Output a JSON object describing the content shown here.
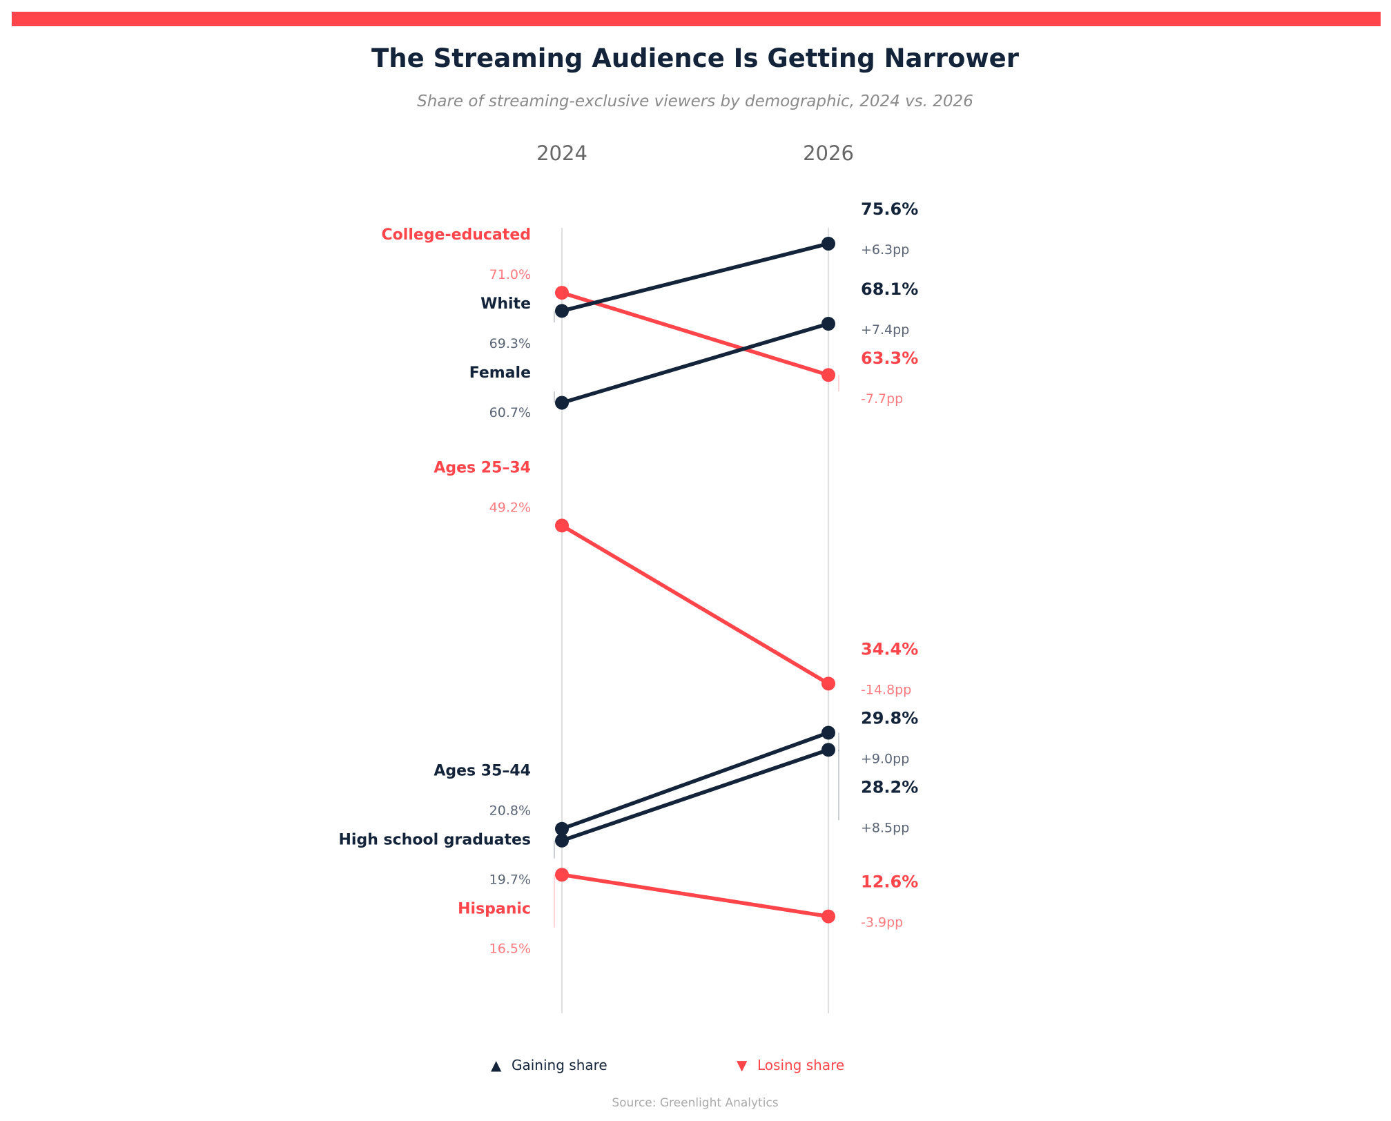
{
  "colors": {
    "accent": "#ff444a",
    "gain": "#13243a",
    "loss": "#ff444a",
    "loss_light": "#ff7a7e",
    "gain_light": "#5a6475",
    "axis": "#d4d4d4"
  },
  "legend": {
    "gain_marker": "▲",
    "gain_label": "Gaining share",
    "loss_marker": "▼",
    "loss_label": "Losing share"
  },
  "source": "Source: Greenlight Analytics",
  "chart_data": {
    "type": "line",
    "title": "The Streaming Audience Is Getting Narrower",
    "subtitle": "Share of streaming-exclusive viewers by demographic, 2024 vs. 2026",
    "x": [
      "2024",
      "2026"
    ],
    "unit": "%",
    "grid": false,
    "series": [
      {
        "name": "College-educated",
        "values": [
          71.0,
          63.3
        ],
        "label_2024": "71.0%",
        "label_2026": "63.3%",
        "change": "-7.7pp",
        "trend": "loss"
      },
      {
        "name": "White",
        "values": [
          69.3,
          75.6
        ],
        "label_2024": "69.3%",
        "label_2026": "75.6%",
        "change": "+6.3pp",
        "trend": "gain"
      },
      {
        "name": "Female",
        "values": [
          60.7,
          68.1
        ],
        "label_2024": "60.7%",
        "label_2026": "68.1%",
        "change": "+7.4pp",
        "trend": "gain"
      },
      {
        "name": "Ages 25–34",
        "values": [
          49.2,
          34.4
        ],
        "label_2024": "49.2%",
        "label_2026": "34.4%",
        "change": "-14.8pp",
        "trend": "loss"
      },
      {
        "name": "Ages 35–44",
        "values": [
          20.8,
          29.8
        ],
        "label_2024": "20.8%",
        "label_2026": "29.8%",
        "change": "+9.0pp",
        "trend": "gain"
      },
      {
        "name": "High school graduates",
        "values": [
          19.7,
          28.2
        ],
        "label_2024": "19.7%",
        "label_2026": "28.2%",
        "change": "+8.5pp",
        "trend": "gain"
      },
      {
        "name": "Hispanic",
        "values": [
          16.5,
          12.6
        ],
        "label_2024": "16.5%",
        "label_2026": "12.6%",
        "change": "-3.9pp",
        "trend": "loss"
      }
    ]
  }
}
